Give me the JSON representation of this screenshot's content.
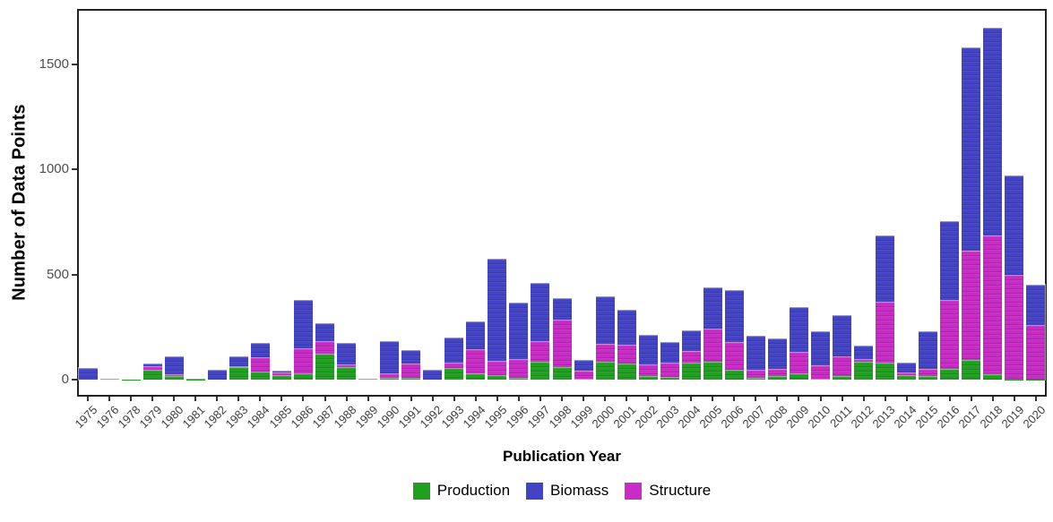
{
  "axes": {
    "x_title": "Publication Year",
    "y_title": "Number of Data Points",
    "y_tick_labels": [
      "0",
      "500",
      "1000",
      "1500"
    ]
  },
  "legend": {
    "items": [
      {
        "label": "Production",
        "color": "#219f21"
      },
      {
        "label": "Biomass",
        "color": "#4343c6"
      },
      {
        "label": "Structure",
        "color": "#c92cc4"
      }
    ]
  },
  "chart_data": {
    "type": "bar",
    "stacked": true,
    "title": "",
    "xlabel": "Publication Year",
    "ylabel": "Number of Data Points",
    "ylim": [
      0,
      1765
    ],
    "yticks": [
      0,
      500,
      1000,
      1500
    ],
    "grid": false,
    "legend_position": "bottom",
    "stack_order_bottom_to_top": [
      "Production",
      "Structure",
      "Biomass"
    ],
    "categories": [
      "1975",
      "1976",
      "1978",
      "1979",
      "1980",
      "1981",
      "1982",
      "1983",
      "1984",
      "1985",
      "1986",
      "1987",
      "1988",
      "1989",
      "1990",
      "1991",
      "1992",
      "1993",
      "1994",
      "1995",
      "1996",
      "1997",
      "1998",
      "1999",
      "2000",
      "2001",
      "2002",
      "2003",
      "2004",
      "2005",
      "2006",
      "2007",
      "2008",
      "2009",
      "2010",
      "2011",
      "2012",
      "2013",
      "2014",
      "2015",
      "2016",
      "2017",
      "2018",
      "2019",
      "2020"
    ],
    "series": [
      {
        "name": "Production",
        "color": "#219f21",
        "values": [
          0,
          3,
          2,
          45,
          15,
          2,
          0,
          58,
          38,
          20,
          30,
          125,
          60,
          3,
          10,
          7,
          0,
          55,
          30,
          22,
          8,
          85,
          60,
          4,
          85,
          75,
          17,
          12,
          80,
          85,
          45,
          7,
          16,
          28,
          6,
          17,
          85,
          80,
          20,
          18,
          50,
          95,
          25,
          2,
          2
        ]
      },
      {
        "name": "Biomass",
        "color": "#4343c6",
        "values": [
          55,
          0,
          0,
          14,
          85,
          4,
          45,
          46,
          65,
          8,
          230,
          88,
          105,
          0,
          157,
          63,
          48,
          120,
          130,
          485,
          270,
          275,
          105,
          51,
          225,
          168,
          143,
          98,
          98,
          195,
          245,
          160,
          145,
          212,
          163,
          199,
          61,
          315,
          45,
          180,
          375,
          965,
          990,
          470,
          191
        ]
      },
      {
        "name": "Structure",
        "color": "#c92cc4",
        "values": [
          0,
          0,
          0,
          18,
          10,
          0,
          0,
          8,
          70,
          14,
          120,
          57,
          11,
          0,
          18,
          70,
          0,
          25,
          115,
          68,
          90,
          100,
          225,
          40,
          85,
          90,
          55,
          70,
          57,
          160,
          135,
          40,
          36,
          105,
          61,
          92,
          14,
          290,
          15,
          32,
          330,
          520,
          660,
          498,
          257
        ]
      }
    ]
  }
}
